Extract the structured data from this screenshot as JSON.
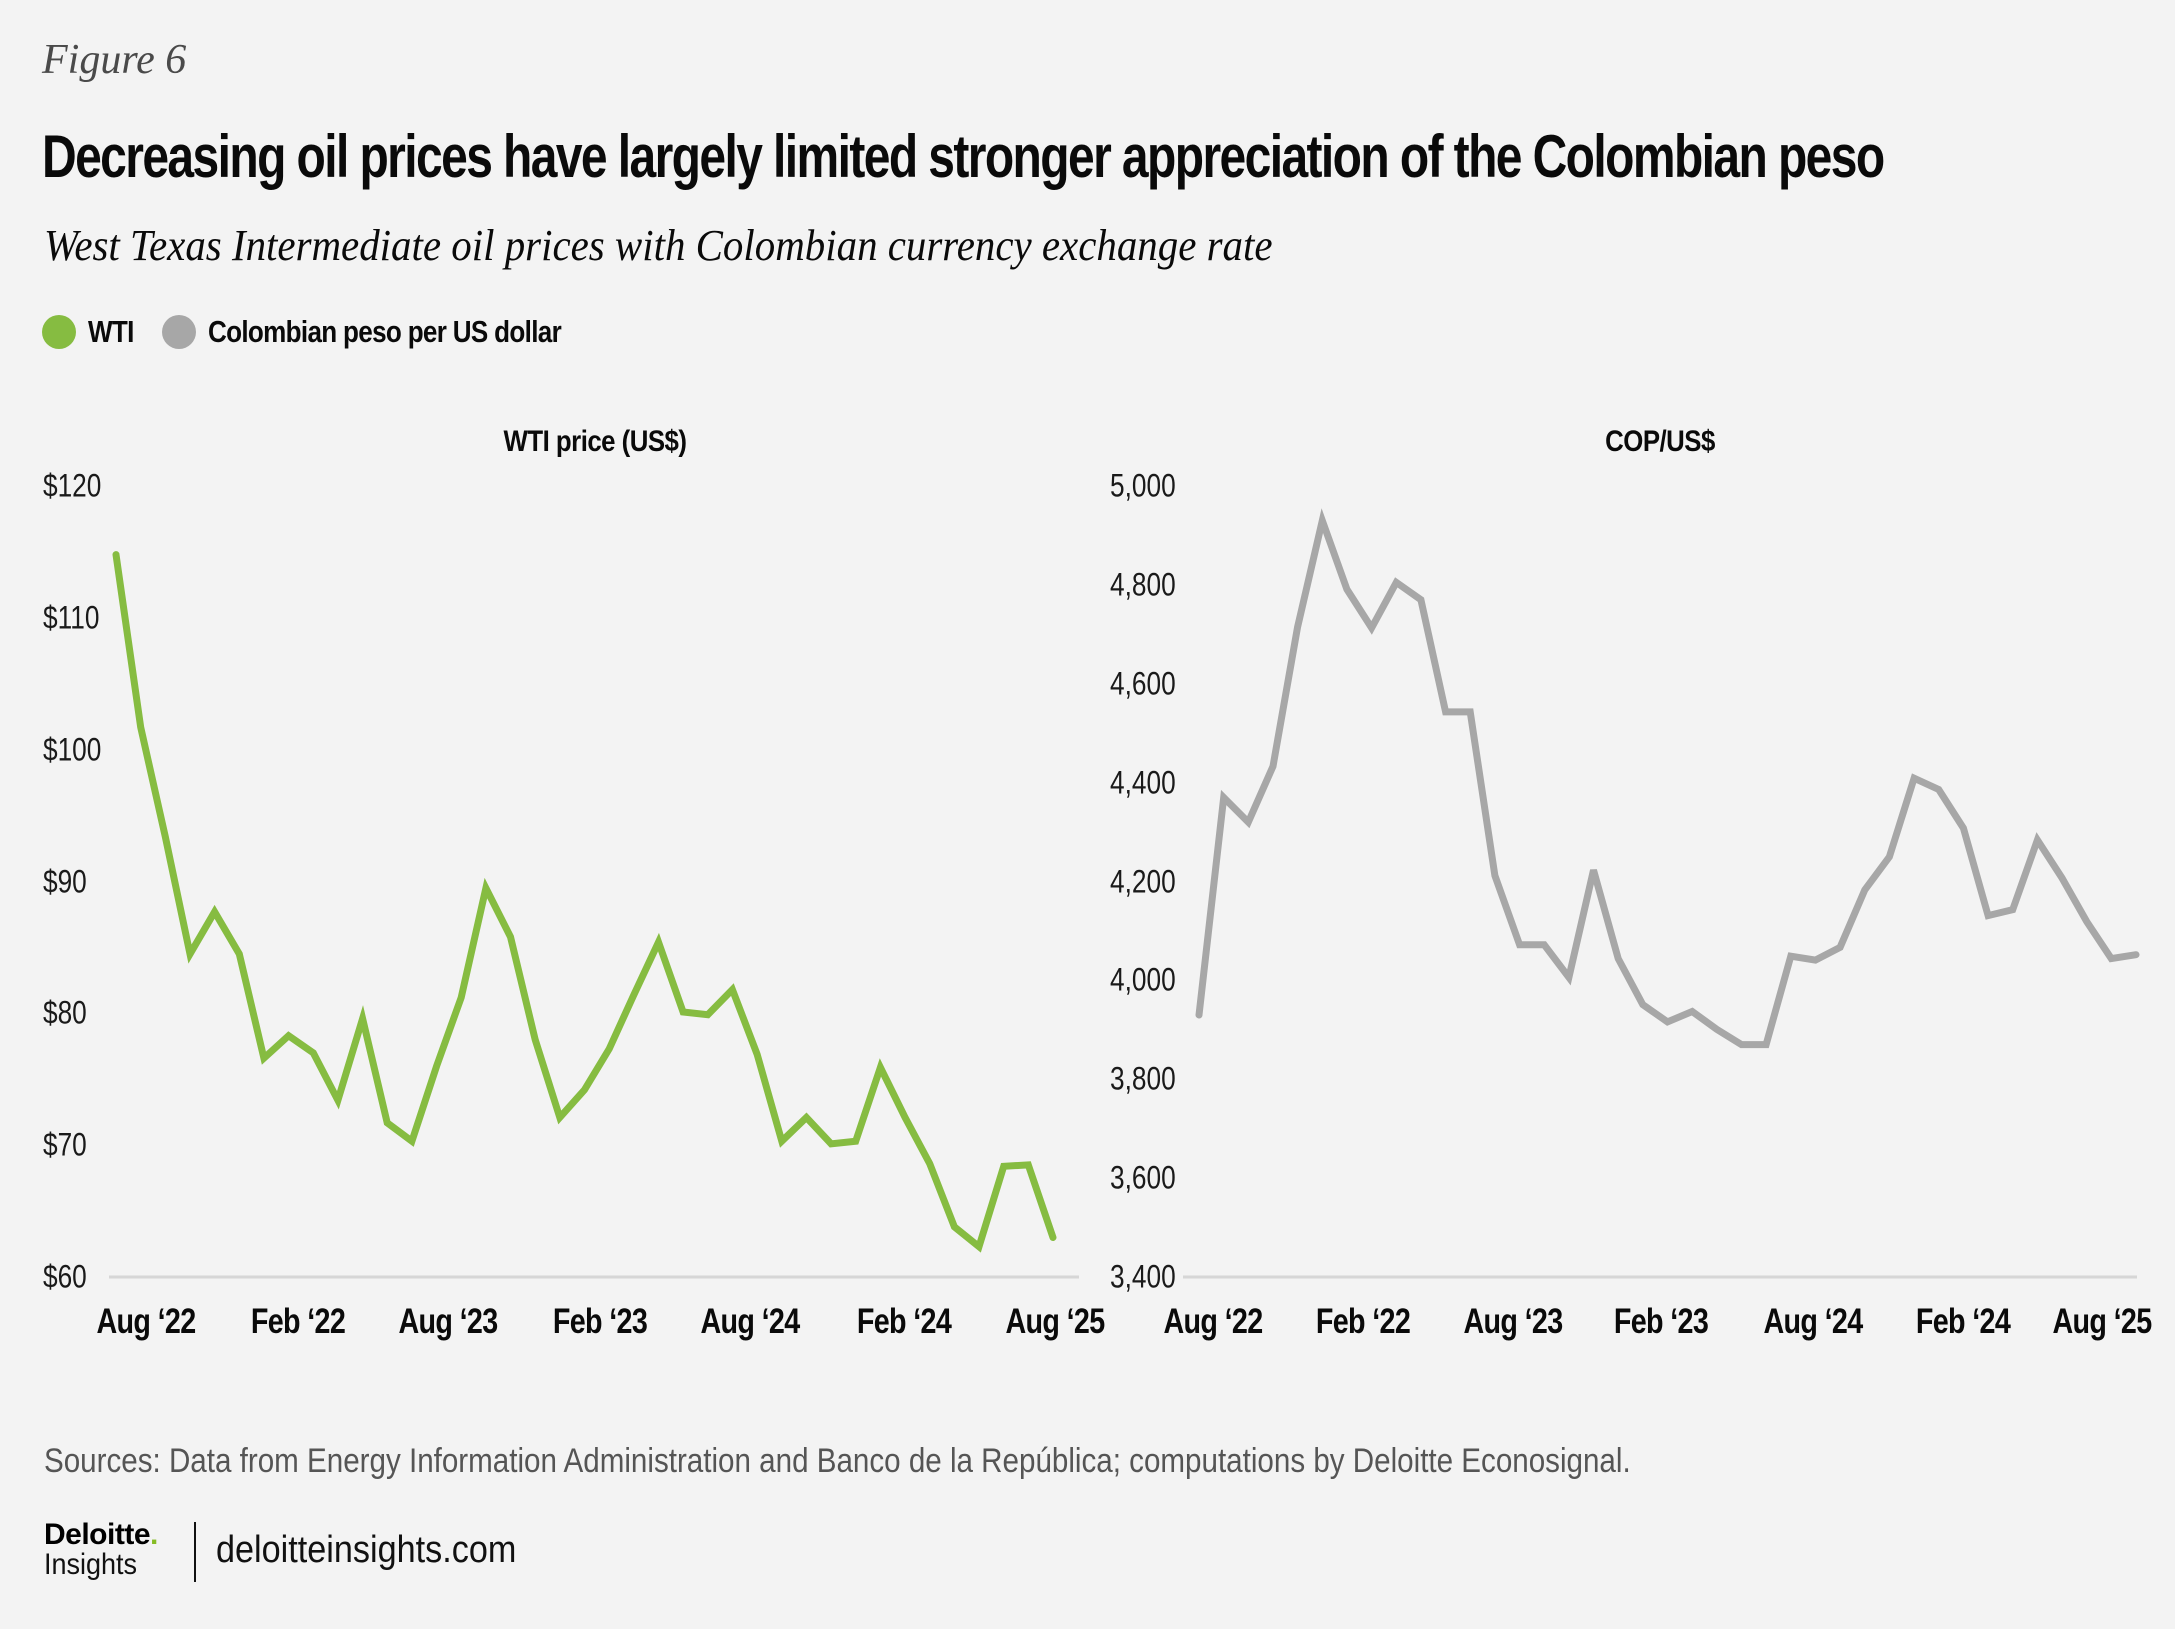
{
  "figure_label": "Figure 6",
  "title": "Decreasing oil prices have largely limited stronger appreciation of the Colombian peso",
  "subtitle": "West Texas Intermediate oil prices with Colombian currency exchange rate",
  "legend": [
    {
      "label": "WTI",
      "color": "#86bc41"
    },
    {
      "label": "Colombian peso per US dollar",
      "color": "#a7a7a7"
    }
  ],
  "colors": {
    "wti": "#86bc41",
    "cop": "#a7a7a7",
    "grid": "#d6d6d6",
    "background": "#f3f3f3"
  },
  "chart_data": [
    {
      "type": "line",
      "title": "WTI price (US$)",
      "series_name": "WTI",
      "ylabel": "WTI price (US$)",
      "ylim": [
        60,
        120
      ],
      "yticks": [
        120,
        110,
        100,
        90,
        80,
        70,
        60
      ],
      "ytick_labels": [
        "$120",
        "$110",
        "$100",
        "$90",
        "$80",
        "$70",
        "$60"
      ],
      "xtick_labels": [
        "Aug ‘22",
        "Feb ‘22",
        "Aug ‘23",
        "Feb ‘23",
        "Aug ‘24",
        "Feb ‘24",
        "Aug ‘25"
      ],
      "grid": "baseline only",
      "values": [
        114.8,
        101.7,
        93.4,
        84.5,
        87.7,
        84.5,
        76.6,
        78.3,
        77.0,
        73.4,
        79.6,
        71.7,
        70.3,
        76.0,
        81.2,
        89.5,
        85.8,
        78.0,
        72.1,
        74.2,
        77.3,
        81.4,
        85.4,
        80.1,
        79.9,
        81.8,
        76.9,
        70.3,
        72.1,
        70.1,
        70.3,
        75.9,
        72.1,
        68.6,
        63.8,
        62.3,
        68.4,
        68.5,
        63.0
      ]
    },
    {
      "type": "line",
      "title": "COP/US$",
      "series_name": "Colombian peso per US dollar",
      "ylabel": "COP/US$",
      "ylim": [
        3400,
        5000
      ],
      "yticks": [
        5000,
        4800,
        4600,
        4400,
        4200,
        4000,
        3800,
        3600,
        3400
      ],
      "ytick_labels": [
        "5,000",
        "4,800",
        "4,600",
        "4,400",
        "4,200",
        "4,000",
        "3,800",
        "3,600",
        "3,400"
      ],
      "xtick_labels": [
        "Aug ‘22",
        "Feb ‘22",
        "Aug ‘23",
        "Feb ‘23",
        "Aug ‘24",
        "Feb ‘24",
        "Aug ‘25"
      ],
      "grid": "baseline only",
      "values": [
        3930,
        4370,
        4320,
        4433,
        4715,
        4930,
        4791,
        4713,
        4805,
        4770,
        4543,
        4543,
        4212,
        4072,
        4072,
        4006,
        4223,
        4044,
        3951,
        3916,
        3937,
        3901,
        3870,
        3870,
        4049,
        4041,
        4067,
        4183,
        4250,
        4409,
        4386,
        4308,
        4131,
        4143,
        4284,
        4207,
        4119,
        4044,
        4052
      ]
    }
  ],
  "sources": "Sources: Data from Energy Information Administration and Banco de la República; computations by Deloitte Econosignal.",
  "footer": {
    "brand": "Deloitte",
    "brand_dot": ".",
    "brand_sub": "Insights",
    "site": "deloitteinsights.com"
  }
}
